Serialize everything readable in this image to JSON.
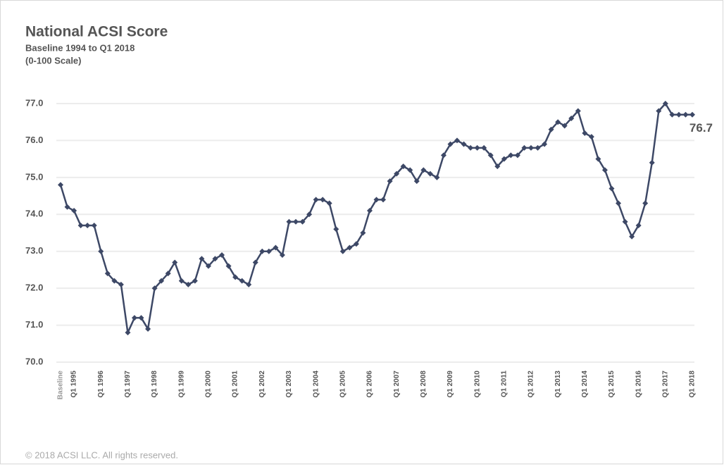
{
  "chart_data": {
    "type": "line",
    "title": "National ACSI Score",
    "subtitle": "Baseline 1994 to Q1 2018",
    "subtitle2": "(0-100 Scale)",
    "annotation": "76.7",
    "footer": "© 2018 ACSI LLC. All rights reserved.",
    "color": "#3d4866",
    "grid": true,
    "ylim": [
      70,
      77
    ],
    "yticks": [
      {
        "value": 70,
        "label": "70.0"
      },
      {
        "value": 71,
        "label": "71.0"
      },
      {
        "value": 72,
        "label": "72.0"
      },
      {
        "value": 73,
        "label": "73.0"
      },
      {
        "value": 74,
        "label": "74.0"
      },
      {
        "value": 75,
        "label": "75.0"
      },
      {
        "value": 76,
        "label": "76.0"
      },
      {
        "value": 77,
        "label": "77.0"
      }
    ],
    "categories": [
      "Baseline",
      null,
      "Q1 1995",
      null,
      null,
      null,
      "Q1 1996",
      null,
      null,
      null,
      "Q1 1997",
      null,
      null,
      null,
      "Q1 1998",
      null,
      null,
      null,
      "Q1 1999",
      null,
      null,
      null,
      "Q1 2000",
      null,
      null,
      null,
      "Q1 2001",
      null,
      null,
      null,
      "Q1 2002",
      null,
      null,
      null,
      "Q1 2003",
      null,
      null,
      null,
      "Q1 2004",
      null,
      null,
      null,
      "Q1 2005",
      null,
      null,
      null,
      "Q1 2006",
      null,
      null,
      null,
      "Q1 2007",
      null,
      null,
      null,
      "Q1 2008",
      null,
      null,
      null,
      "Q1 2009",
      null,
      null,
      null,
      "Q1 2010",
      null,
      null,
      null,
      "Q1 2011",
      null,
      null,
      null,
      "Q1 2012",
      null,
      null,
      null,
      "Q1 2013",
      null,
      null,
      null,
      "Q1 2014",
      null,
      null,
      null,
      "Q1 2015",
      null,
      null,
      null,
      "Q1 2016",
      null,
      null,
      null,
      "Q1 2017",
      null,
      null,
      null,
      "Q1 2018"
    ],
    "values": [
      74.8,
      74.2,
      74.1,
      73.7,
      73.7,
      73.7,
      73.0,
      72.4,
      72.2,
      72.1,
      70.8,
      71.2,
      71.2,
      70.9,
      72.0,
      72.2,
      72.4,
      72.7,
      72.2,
      72.1,
      72.2,
      72.8,
      72.6,
      72.8,
      72.9,
      72.6,
      72.3,
      72.2,
      72.1,
      72.7,
      73.0,
      73.0,
      73.1,
      72.9,
      73.8,
      73.8,
      73.8,
      74.0,
      74.4,
      74.4,
      74.3,
      73.6,
      73.0,
      73.1,
      73.2,
      73.5,
      74.1,
      74.4,
      74.4,
      74.9,
      75.1,
      75.3,
      75.2,
      74.9,
      75.2,
      75.1,
      75.0,
      75.6,
      75.9,
      76.0,
      75.9,
      75.8,
      75.8,
      75.8,
      75.6,
      75.3,
      75.5,
      75.6,
      75.6,
      75.8,
      75.8,
      75.8,
      75.9,
      76.3,
      76.5,
      76.4,
      76.6,
      76.8,
      76.2,
      76.1,
      75.5,
      75.2,
      74.7,
      74.3,
      73.8,
      73.4,
      73.7,
      74.3,
      75.4,
      76.8,
      77.0,
      76.7,
      76.7,
      76.7,
      76.7
    ]
  }
}
